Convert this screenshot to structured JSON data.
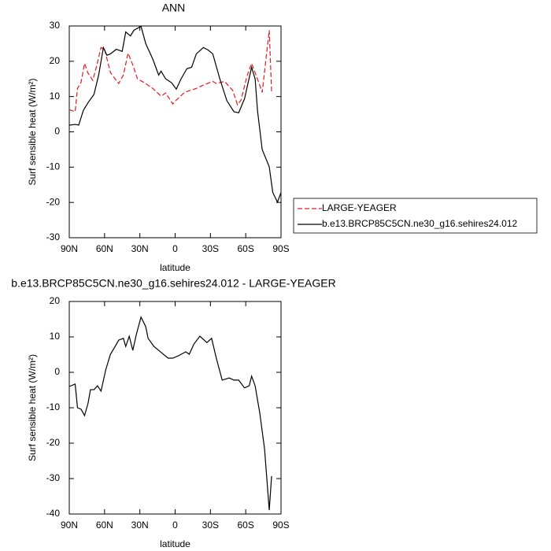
{
  "chart_data": [
    {
      "type": "line",
      "title": "ANN",
      "xlabel": "latitude",
      "ylabel": "Surf sensible heat (W/m²)",
      "xlim": [
        90,
        -90
      ],
      "xticks": [
        {
          "value": 90,
          "label": "90N"
        },
        {
          "value": 60,
          "label": "60N"
        },
        {
          "value": 30,
          "label": "30N"
        },
        0,
        {
          "value": -30,
          "label": "30S"
        },
        {
          "value": -60,
          "label": "60S"
        },
        {
          "value": -90,
          "label": "90S"
        }
      ],
      "ylim": [
        -30,
        30
      ],
      "yticks": [
        -30,
        -20,
        -10,
        0,
        10,
        20,
        30
      ],
      "legend": "outside-right",
      "series": [
        {
          "name": "LARGE-YEAGER",
          "color": "#e41a1c",
          "dash": true,
          "x": [
            90,
            85,
            83,
            80,
            77,
            74,
            70,
            67,
            63,
            60,
            55,
            51,
            48,
            44,
            40,
            36,
            32,
            26,
            19,
            12,
            8,
            2,
            -1,
            -8,
            -18,
            -25,
            -32,
            -35,
            -42,
            -49,
            -53,
            -56,
            -61,
            -65,
            -70,
            -74,
            -80,
            -82
          ],
          "values": [
            6.3,
            5.7,
            12.3,
            14,
            19.4,
            16.6,
            14.6,
            18.3,
            23.9,
            23.4,
            16.8,
            15,
            13.7,
            16.1,
            22.3,
            19,
            15,
            13.9,
            12.3,
            10.1,
            11,
            7.9,
            9,
            11.2,
            12.3,
            13.4,
            14.3,
            13.7,
            14.3,
            11.7,
            7.7,
            9,
            15.7,
            19.4,
            15,
            11.2,
            28.8,
            11.2
          ]
        },
        {
          "name": "b.e13.BRCP85C5CN.ne30_g16.sehires24.012",
          "color": "#000000",
          "dash": false,
          "x": [
            90,
            85,
            82,
            78,
            74,
            69,
            65,
            61,
            58,
            55,
            50,
            45,
            42,
            38,
            35,
            29,
            25,
            19,
            14,
            12,
            8,
            3,
            -1,
            -5,
            -10,
            -14,
            -18,
            -24,
            -28,
            -32,
            -38,
            -44,
            -50,
            -54,
            -59,
            -65,
            -68,
            -70,
            -74,
            -80,
            -83,
            -87,
            -90
          ],
          "values": [
            1.9,
            2.1,
            1.9,
            6.1,
            8.3,
            10.6,
            16.1,
            23.9,
            21.7,
            22.1,
            23.4,
            22.8,
            28.3,
            27.2,
            28.8,
            29.9,
            25,
            20.6,
            16.1,
            17.2,
            15,
            13.9,
            12.1,
            15,
            17.9,
            18.3,
            22.1,
            23.9,
            23.2,
            22.1,
            15,
            8.8,
            5.7,
            5.4,
            9.4,
            18.3,
            15,
            6.1,
            -5,
            -9.9,
            -17.2,
            -19.9,
            -17.2
          ]
        }
      ]
    },
    {
      "type": "line",
      "title": "b.e13.BRCP85C5CN.ne30_g16.sehires24.012 - LARGE-YEAGER",
      "xlabel": "latitude",
      "ylabel": "Surf sensible heat (W/m²)",
      "xlim": [
        90,
        -90
      ],
      "xticks": [
        {
          "value": 90,
          "label": "90N"
        },
        {
          "value": 60,
          "label": "60N"
        },
        {
          "value": 30,
          "label": "30N"
        },
        0,
        {
          "value": -30,
          "label": "30S"
        },
        {
          "value": -60,
          "label": "60S"
        },
        {
          "value": -90,
          "label": "90S"
        }
      ],
      "ylim": [
        -40,
        20
      ],
      "yticks": [
        -40,
        -30,
        -20,
        -10,
        0,
        10,
        20
      ],
      "series": [
        {
          "color": "#000000",
          "dash": false,
          "x": [
            90,
            85,
            83,
            80,
            77,
            74,
            72,
            69,
            66,
            63,
            59,
            55,
            51,
            48,
            44,
            42,
            39,
            36,
            33,
            29,
            25,
            23,
            18,
            14,
            10,
            6,
            2,
            -3,
            -9,
            -12,
            -16,
            -21,
            -27,
            -31,
            -35,
            -40,
            -46,
            -50,
            -54,
            -59,
            -63,
            -65,
            -68,
            -72,
            -76,
            -80,
            -82
          ],
          "values": [
            -4,
            -3.3,
            -10,
            -10.4,
            -12.2,
            -8.7,
            -4.9,
            -4.9,
            -3.8,
            -5.3,
            0.7,
            5.1,
            7.3,
            9.1,
            9.6,
            7.3,
            10.2,
            6.2,
            10.7,
            15.6,
            12.9,
            9.6,
            7.3,
            6.2,
            5.1,
            4,
            4,
            4.7,
            5.8,
            5.1,
            8,
            10.2,
            8.4,
            9.6,
            4,
            -2.2,
            -1.6,
            -2.2,
            -2.2,
            -4.4,
            -3.8,
            -1.1,
            -3.8,
            -11.6,
            -21.6,
            -38.9,
            -29.3
          ]
        }
      ]
    }
  ]
}
